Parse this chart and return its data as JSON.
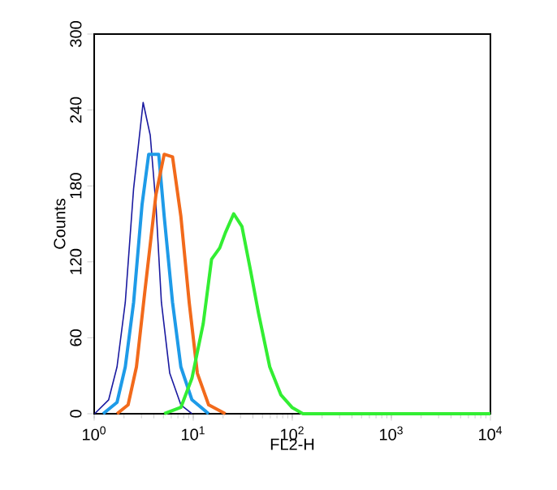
{
  "chart_data": {
    "type": "line",
    "xlabel": "FL2-H",
    "ylabel": "Counts",
    "log": "x",
    "xlim": [
      1,
      10000
    ],
    "ylim": [
      0,
      300
    ],
    "xticks": [
      {
        "value": 1,
        "label": "10$^{0}$"
      },
      {
        "value": 10,
        "label": "10$^{1}$"
      },
      {
        "value": 100,
        "label": "10$^{2}$"
      },
      {
        "value": 1000,
        "label": "10$^{3}$"
      },
      {
        "value": 10000,
        "label": "10$^{4}$"
      }
    ],
    "yticks": [
      0,
      60,
      120,
      180,
      240,
      300
    ],
    "series": [
      {
        "color": "#1a1aa0",
        "x": [
          1.01,
          1.4,
          1.7,
          2.06,
          2.5,
          3.12,
          3.68,
          4.2,
          4.77,
          5.79,
          7.5,
          9.7
        ],
        "values": [
          0,
          11,
          37,
          88,
          178,
          246,
          220,
          165,
          88,
          32,
          7,
          0
        ]
      },
      {
        "color": "#1e9be8",
        "x": [
          1.23,
          1.7,
          2.06,
          2.5,
          3.04,
          3.55,
          4.48,
          5.09,
          6.18,
          7.5,
          9.7,
          14.3
        ],
        "values": [
          0,
          9,
          37,
          88,
          165,
          205,
          205,
          156,
          88,
          37,
          11,
          0
        ]
      },
      {
        "color": "#f26a1b",
        "x": [
          1.7,
          2.2,
          2.67,
          3.24,
          4.2,
          5.09,
          6.18,
          7.5,
          9.1,
          11.0,
          14.3,
          21.1
        ],
        "values": [
          0,
          7,
          37,
          96,
          173,
          205,
          203,
          156,
          88,
          32,
          7,
          0
        ]
      },
      {
        "color": "#33ee33",
        "x": [
          5.09,
          7.5,
          9.7,
          12.6,
          15.3,
          18.5,
          21.1,
          25.6,
          31.0,
          37.7,
          45.7,
          59.2,
          76.6,
          99.3,
          128,
          10000
        ],
        "values": [
          0,
          5,
          28,
          71,
          122,
          131,
          143,
          158,
          148,
          114,
          79,
          37,
          15,
          5,
          0,
          0
        ]
      }
    ]
  }
}
